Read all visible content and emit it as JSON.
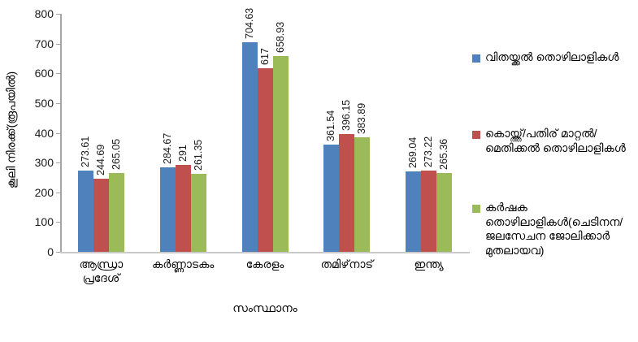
{
  "chart_data": {
    "type": "bar",
    "title": "",
    "xlabel": "സംസ്ഥാനം",
    "ylabel": "കൂലി നിരക്ക്(രൂപയിൽ)",
    "categories": [
      "ആന്ധ്രാ പ്രദേശ്",
      "കർണ്ണാടകം",
      "കേരളം",
      "തമിഴ്‌നാട്",
      "ഇന്ത്യ"
    ],
    "series": [
      {
        "name": "വിതയ്ക്കൽ തൊഴിലാളികൾ",
        "color": "#4F81BD",
        "values": [
          273.61,
          284.67,
          704.63,
          361.54,
          269.04
        ]
      },
      {
        "name": "കൊയ്ത്ത്/പതിര് മാറ്റൽ/മെതിക്കൽ തൊഴിലാളികൾ",
        "color": "#C0504D",
        "values": [
          244.69,
          291,
          617,
          396.15,
          273.22
        ]
      },
      {
        "name": "കർഷക തൊഴിലാളികൾ(ചെടിനന/ ജലസേചന ജോലിക്കാർ മുതലായവ)",
        "color": "#9BBB59",
        "values": [
          265.05,
          261.35,
          658.93,
          383.89,
          265.36
        ]
      }
    ],
    "ylim": [
      0,
      800
    ],
    "yticks": [
      0,
      100,
      200,
      300,
      400,
      500,
      600,
      700,
      800
    ],
    "grid": false,
    "legend_position": "right",
    "data_labels": true,
    "data_label_rotation": -90,
    "bar_label_examples": "values printed vertically above each bar"
  }
}
